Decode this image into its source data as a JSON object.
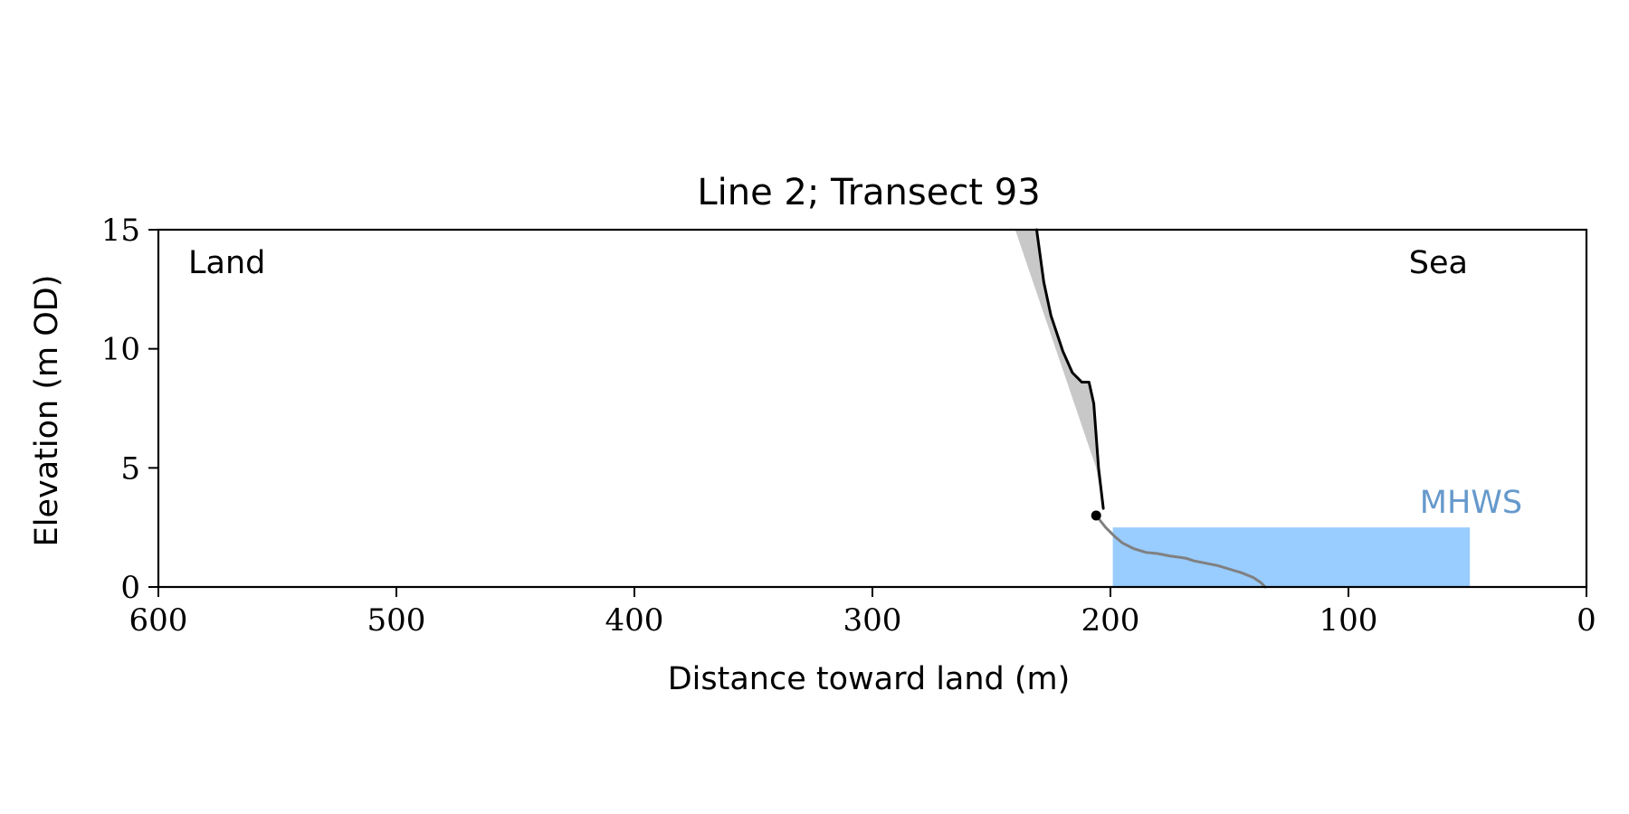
{
  "chart_data": {
    "type": "line",
    "title": "Line 2; Transect 93",
    "xlabel": "Distance toward land (m)",
    "ylabel": "Elevation (m OD)",
    "xlim": [
      600,
      0
    ],
    "ylim": [
      0,
      15
    ],
    "x_reversed": true,
    "x_ticks": [
      600,
      500,
      400,
      300,
      200,
      100,
      0
    ],
    "y_ticks": [
      0,
      5,
      10,
      15
    ],
    "grid": false,
    "annotations": [
      {
        "text": "Land",
        "position": "top-left"
      },
      {
        "text": "Sea",
        "position": "top-right"
      },
      {
        "text": "MHWS",
        "color": "#6699cc"
      }
    ],
    "series": [
      {
        "role": "cliff profile",
        "color": "#000000",
        "x": [
          231,
          228,
          225,
          220,
          216,
          212,
          209,
          207,
          205,
          203
        ],
        "y": [
          15.0,
          12.8,
          11.4,
          9.9,
          9.0,
          8.6,
          8.6,
          7.7,
          5.0,
          3.3
        ]
      },
      {
        "role": "beach profile",
        "color": "#808080",
        "x": [
          206,
          202,
          198,
          195,
          190,
          185,
          180,
          175,
          171,
          168,
          165,
          160,
          155,
          150,
          145,
          140,
          137,
          135
        ],
        "y": [
          3.0,
          2.5,
          2.1,
          1.85,
          1.6,
          1.45,
          1.4,
          1.3,
          1.25,
          1.2,
          1.1,
          1.0,
          0.9,
          0.75,
          0.6,
          0.4,
          0.2,
          0.0
        ]
      },
      {
        "role": "cliff-top marker",
        "color": "#000000",
        "x": [
          206
        ],
        "y": [
          3.0
        ]
      }
    ],
    "regions": [
      {
        "role": "envelope",
        "color": "#c8c8c8",
        "x": [
          240,
          231,
          228,
          225,
          220,
          216,
          212,
          209,
          207,
          205,
          203,
          206,
          240
        ],
        "y": [
          15.0,
          15.0,
          12.8,
          11.4,
          9.9,
          9.0,
          8.6,
          8.6,
          7.7,
          5.0,
          3.3,
          5.0,
          15.0
        ]
      },
      {
        "role": "MHWS water",
        "color": "#99ccff",
        "x_from": 199,
        "x_to": 49,
        "level": 2.5
      }
    ]
  }
}
